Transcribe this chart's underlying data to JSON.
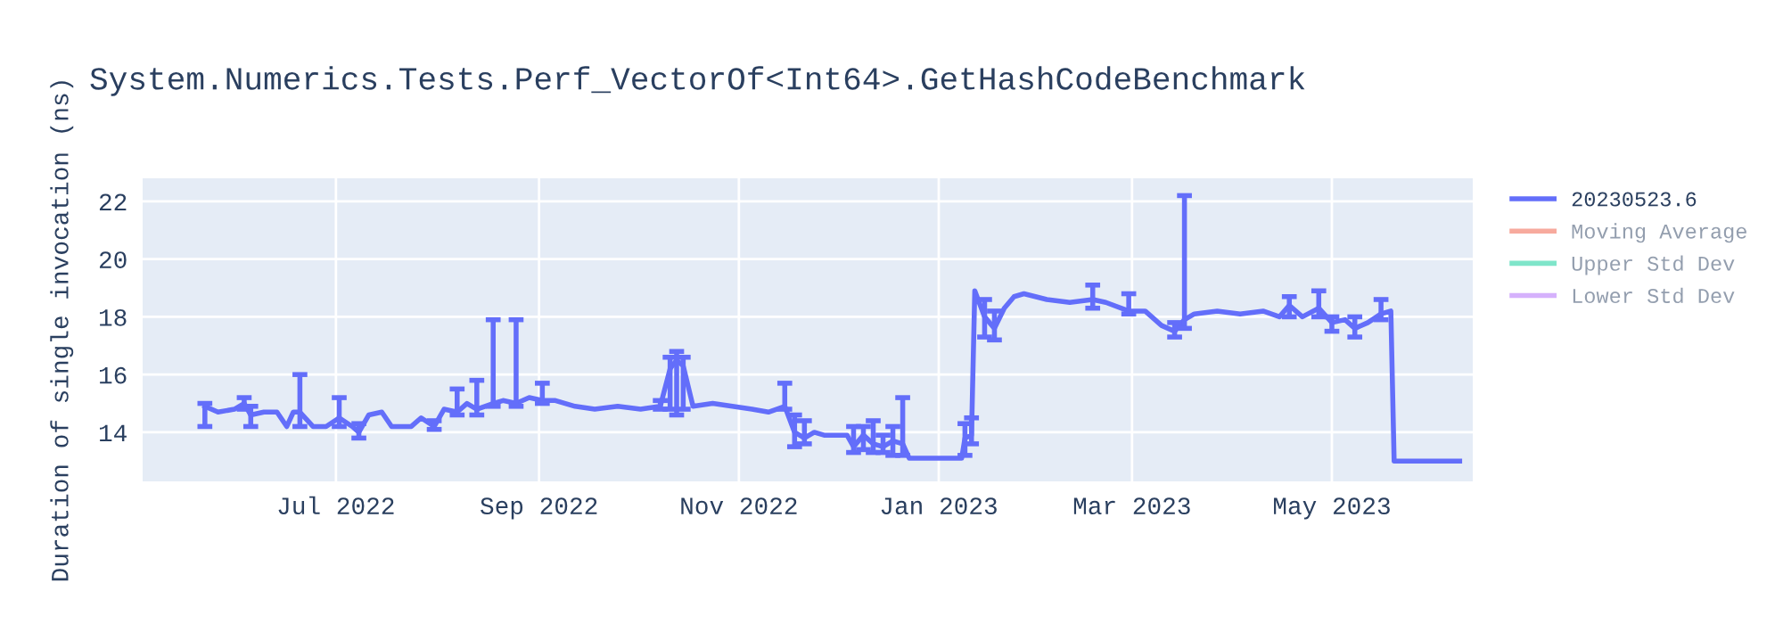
{
  "chart_data": {
    "type": "line",
    "title": "System.Numerics.Tests.Perf_VectorOf<Int64>.GetHashCodeBenchmark",
    "ylabel": "Duration of single invocation (ns)",
    "x": [
      "2022-05-22",
      "2022-05-26",
      "2022-05-31",
      "2022-06-03",
      "2022-06-05",
      "2022-06-09",
      "2022-06-13",
      "2022-06-16",
      "2022-06-18",
      "2022-06-20",
      "2022-06-24",
      "2022-06-28",
      "2022-07-02",
      "2022-07-06",
      "2022-07-08",
      "2022-07-11",
      "2022-07-15",
      "2022-07-18",
      "2022-07-24",
      "2022-07-27",
      "2022-07-31",
      "2022-08-03",
      "2022-08-07",
      "2022-08-10",
      "2022-08-13",
      "2022-08-18",
      "2022-08-21",
      "2022-08-25",
      "2022-08-29",
      "2022-09-02",
      "2022-09-06",
      "2022-09-12",
      "2022-09-18",
      "2022-09-25",
      "2022-10-02",
      "2022-10-08",
      "2022-10-11",
      "2022-10-13",
      "2022-10-15",
      "2022-10-18",
      "2022-10-24",
      "2022-10-30",
      "2022-11-05",
      "2022-11-10",
      "2022-11-15",
      "2022-11-18",
      "2022-11-21",
      "2022-11-24",
      "2022-11-27",
      "2022-12-04",
      "2022-12-06",
      "2022-12-09",
      "2022-12-12",
      "2022-12-15",
      "2022-12-18",
      "2022-12-21",
      "2022-12-23",
      "2023-01-08",
      "2023-01-09",
      "2023-01-11",
      "2023-01-12",
      "2023-01-15",
      "2023-01-18",
      "2023-01-21",
      "2023-01-24",
      "2023-01-27",
      "2023-02-03",
      "2023-02-10",
      "2023-02-17",
      "2023-02-21",
      "2023-02-28",
      "2023-03-05",
      "2023-03-10",
      "2023-03-14",
      "2023-03-17",
      "2023-03-20",
      "2023-03-27",
      "2023-04-03",
      "2023-04-10",
      "2023-04-15",
      "2023-04-18",
      "2023-04-22",
      "2023-04-27",
      "2023-05-01",
      "2023-05-05",
      "2023-05-08",
      "2023-05-12",
      "2023-05-16",
      "2023-05-19",
      "2023-05-20",
      "2023-06-09"
    ],
    "series": [
      {
        "name": "20230523.6",
        "color": "#636efa",
        "values": [
          14.9,
          14.7,
          14.8,
          15.0,
          14.6,
          14.7,
          14.7,
          14.2,
          14.7,
          14.7,
          14.2,
          14.2,
          14.5,
          14.2,
          14.0,
          14.6,
          14.7,
          14.2,
          14.2,
          14.5,
          14.2,
          14.8,
          14.7,
          15.0,
          14.8,
          15.0,
          15.1,
          15.0,
          15.2,
          15.1,
          15.1,
          14.9,
          14.8,
          14.9,
          14.8,
          14.9,
          16.2,
          16.5,
          16.3,
          14.9,
          15.0,
          14.9,
          14.8,
          14.7,
          14.9,
          14.0,
          13.8,
          14.0,
          13.9,
          13.9,
          13.5,
          13.9,
          13.6,
          13.5,
          13.7,
          13.6,
          13.1,
          13.1,
          13.8,
          13.9,
          18.9,
          18.0,
          17.6,
          18.3,
          18.7,
          18.8,
          18.6,
          18.5,
          18.6,
          18.5,
          18.2,
          18.2,
          17.7,
          17.5,
          17.9,
          18.1,
          18.2,
          18.1,
          18.2,
          18.0,
          18.4,
          18.0,
          18.3,
          17.8,
          17.9,
          17.6,
          17.8,
          18.1,
          18.2,
          13.0,
          13.0
        ],
        "errors": [
          [
            14.2,
            15.0
          ],
          null,
          null,
          [
            14.8,
            15.2
          ],
          [
            14.2,
            14.9
          ],
          null,
          null,
          null,
          null,
          [
            14.2,
            16.0
          ],
          null,
          null,
          [
            14.2,
            15.2
          ],
          null,
          [
            13.8,
            14.3
          ],
          null,
          null,
          null,
          null,
          null,
          [
            14.1,
            14.4
          ],
          null,
          [
            14.6,
            15.5
          ],
          null,
          [
            14.6,
            15.8
          ],
          [
            14.9,
            17.9
          ],
          null,
          [
            14.9,
            17.9
          ],
          null,
          [
            15.0,
            15.7
          ],
          null,
          null,
          null,
          null,
          null,
          [
            14.8,
            15.1
          ],
          [
            14.8,
            16.6
          ],
          [
            14.6,
            16.8
          ],
          [
            14.8,
            16.6
          ],
          null,
          null,
          null,
          null,
          null,
          [
            14.8,
            15.7
          ],
          [
            13.5,
            14.6
          ],
          [
            13.6,
            14.4
          ],
          null,
          null,
          null,
          [
            13.3,
            14.2
          ],
          [
            13.4,
            14.2
          ],
          [
            13.3,
            14.4
          ],
          [
            13.3,
            13.9
          ],
          [
            13.2,
            14.2
          ],
          [
            13.2,
            15.2
          ],
          null,
          null,
          [
            13.2,
            14.3
          ],
          [
            13.6,
            14.5
          ],
          null,
          [
            17.3,
            18.6
          ],
          [
            17.2,
            18.2
          ],
          null,
          null,
          null,
          null,
          null,
          [
            18.3,
            19.1
          ],
          null,
          [
            18.1,
            18.8
          ],
          null,
          null,
          [
            17.3,
            17.8
          ],
          [
            17.6,
            22.2
          ],
          null,
          null,
          null,
          null,
          null,
          [
            18.0,
            18.7
          ],
          null,
          [
            18.0,
            18.9
          ],
          [
            17.5,
            18.0
          ],
          null,
          [
            17.3,
            18.0
          ],
          null,
          [
            17.9,
            18.6
          ],
          null,
          null,
          null
        ]
      },
      {
        "name": "Moving Average",
        "color": "#ef553b",
        "values": [
          null,
          null,
          null,
          null,
          null,
          null,
          null,
          null,
          null,
          null,
          null,
          null,
          null,
          null,
          null,
          null,
          null,
          null,
          null,
          null,
          null,
          null,
          null,
          null,
          null,
          null,
          null,
          null,
          null,
          null,
          null,
          null,
          null,
          null,
          null,
          null,
          null,
          null,
          null,
          null,
          null,
          null,
          null,
          null,
          null,
          null,
          null,
          null,
          null,
          null,
          null,
          null,
          null,
          null,
          null,
          null,
          null,
          null,
          null,
          null,
          null,
          null,
          null,
          null,
          null,
          null,
          null,
          null,
          null,
          null,
          null,
          null,
          null,
          null,
          null,
          null,
          null,
          null,
          null,
          null,
          null,
          null,
          null,
          null,
          null,
          null,
          null,
          null,
          null,
          null,
          null
        ]
      },
      {
        "name": "Upper Std Dev",
        "color": "#00cc96",
        "values": [
          null,
          null,
          null,
          null,
          null,
          null,
          null,
          null,
          null,
          null,
          null,
          null,
          null,
          null,
          null,
          null,
          null,
          null,
          null,
          null,
          null,
          null,
          null,
          null,
          null,
          null,
          null,
          null,
          null,
          null,
          null,
          null,
          null,
          null,
          null,
          null,
          null,
          null,
          null,
          null,
          null,
          null,
          null,
          null,
          null,
          null,
          null,
          null,
          null,
          null,
          null,
          null,
          null,
          null,
          null,
          null,
          null,
          null,
          null,
          null,
          null,
          null,
          null,
          null,
          null,
          null,
          null,
          null,
          null,
          null,
          null,
          null,
          null,
          null,
          null,
          null,
          null,
          null,
          null,
          null,
          null,
          null,
          null,
          null,
          null,
          null,
          null,
          null,
          null,
          null,
          null
        ]
      },
      {
        "name": "Lower Std Dev",
        "color": "#ab63fa",
        "values": [
          null,
          null,
          null,
          null,
          null,
          null,
          null,
          null,
          null,
          null,
          null,
          null,
          null,
          null,
          null,
          null,
          null,
          null,
          null,
          null,
          null,
          null,
          null,
          null,
          null,
          null,
          null,
          null,
          null,
          null,
          null,
          null,
          null,
          null,
          null,
          null,
          null,
          null,
          null,
          null,
          null,
          null,
          null,
          null,
          null,
          null,
          null,
          null,
          null,
          null,
          null,
          null,
          null,
          null,
          null,
          null,
          null,
          null,
          null,
          null,
          null,
          null,
          null,
          null,
          null,
          null,
          null,
          null,
          null,
          null,
          null,
          null,
          null,
          null,
          null,
          null,
          null,
          null,
          null,
          null,
          null,
          null,
          null,
          null,
          null,
          null,
          null,
          null,
          null,
          null,
          null
        ]
      }
    ],
    "xlim": [
      "2022-05-03",
      "2023-06-13"
    ],
    "xticks": [
      {
        "value": "2022-07-01",
        "label": "Jul 2022"
      },
      {
        "value": "2022-09-01",
        "label": "Sep 2022"
      },
      {
        "value": "2022-11-01",
        "label": "Nov 2022"
      },
      {
        "value": "2023-01-01",
        "label": "Jan 2023"
      },
      {
        "value": "2023-03-01",
        "label": "Mar 2023"
      },
      {
        "value": "2023-05-01",
        "label": "May 2023"
      }
    ],
    "ylim": [
      12.3,
      22.8
    ],
    "yticks": [
      14,
      16,
      18,
      20,
      22
    ],
    "grid": true,
    "legend": "right",
    "marker": "none",
    "line_style": "solid"
  }
}
